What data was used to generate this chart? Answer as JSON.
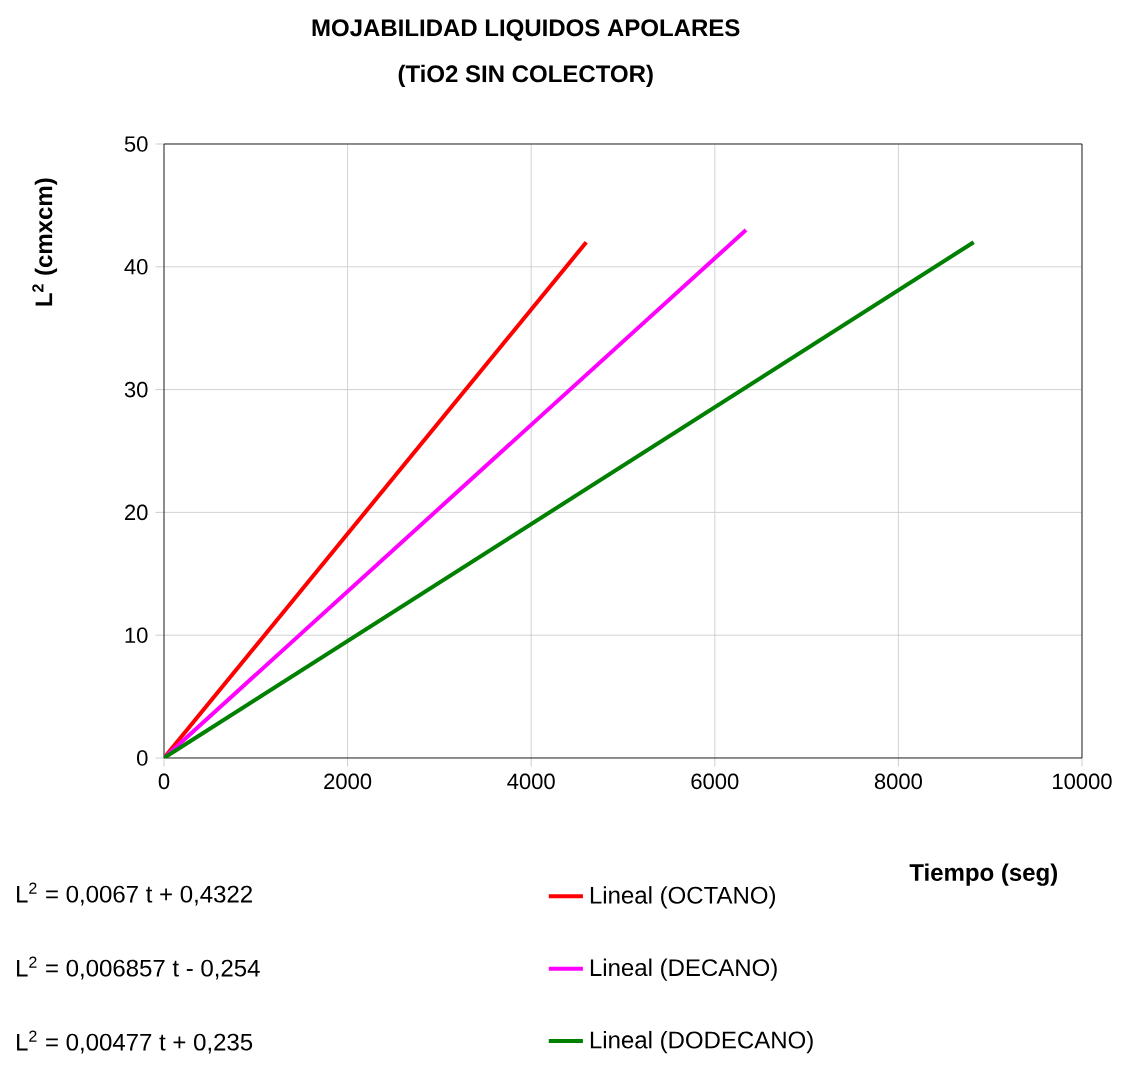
{
  "chart_data": {
    "type": "line",
    "title": "MOJABILIDAD LIQUIDOS APOLARES",
    "subtitle": "(TiO2 SIN COLECTOR)",
    "xlabel": "Tiempo (seg)",
    "ylabel": "L$^{2}$ (cmxcm)",
    "series": [
      {
        "name": "Lineal (OCTANO)",
        "color": "#ff0000",
        "x": [
          0,
          4600
        ],
        "values": [
          0,
          42
        ]
      },
      {
        "name": "Lineal (DECANO)",
        "color": "#ff00ff",
        "x": [
          0,
          6340
        ],
        "values": [
          0,
          43
        ]
      },
      {
        "name": "Lineal (DODECANO)",
        "color": "#008000",
        "x": [
          0,
          8820
        ],
        "values": [
          0,
          42
        ]
      }
    ],
    "xlim": [
      0,
      10000
    ],
    "xticks": [
      0,
      2000,
      4000,
      6000,
      8000,
      10000
    ],
    "ylim": [
      0,
      50
    ],
    "yticks": [
      0,
      10,
      20,
      30,
      40,
      50
    ],
    "grid": true,
    "legend": "bottom",
    "marker": "none",
    "line_style": "solid",
    "annotations": [
      "L$^{2}$ = 0,0067 t + 0,4322",
      "L$^{2}$ = 0,006857 t - 0,254",
      "L$^{2}$ = 0,00477 t + 0,235"
    ]
  }
}
